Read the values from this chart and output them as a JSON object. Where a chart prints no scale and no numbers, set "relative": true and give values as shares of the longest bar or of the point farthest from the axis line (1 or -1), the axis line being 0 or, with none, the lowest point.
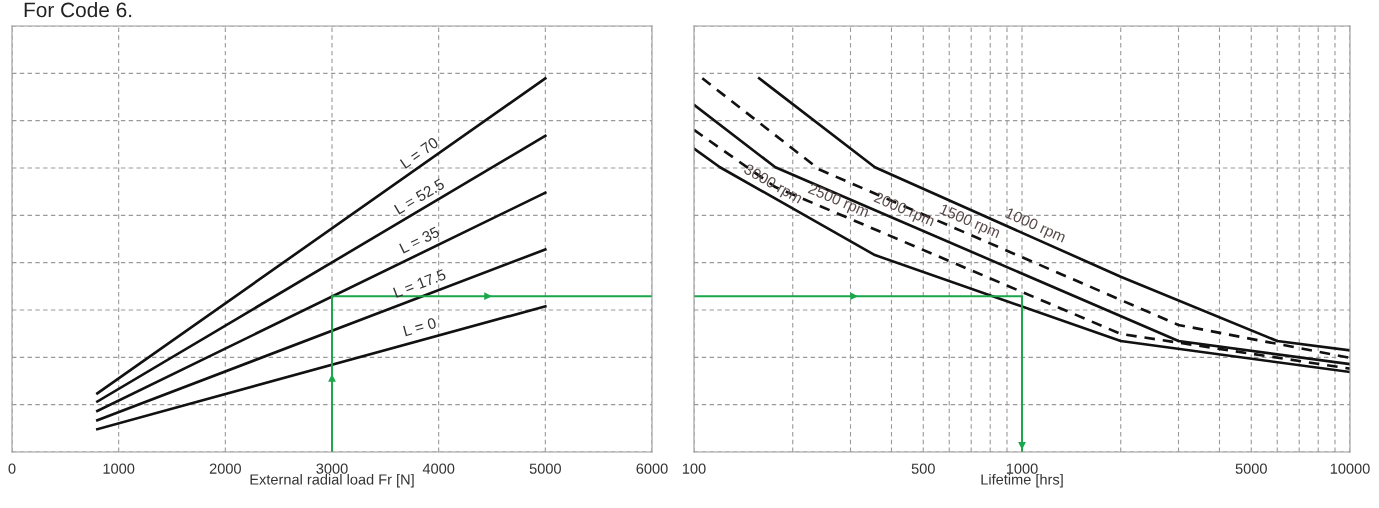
{
  "chart_data": [
    {
      "type": "line",
      "title": "For Code 6.",
      "xlabel": "External radial load Fr [N]",
      "xlim": [
        0,
        6000
      ],
      "xticks": [
        0,
        1000,
        2000,
        3000,
        4000,
        5000,
        6000
      ],
      "relative": true,
      "grid": true,
      "tick_labels": "x",
      "legend": false,
      "series": [
        {
          "name": "L = 0",
          "color": "#111111",
          "line_style": "solid",
          "x": [
            800,
            5000
          ],
          "values": [
            0.061,
            0.39
          ]
        },
        {
          "name": "L = 17.5",
          "color": "#111111",
          "line_style": "solid",
          "x": [
            800,
            5000
          ],
          "values": [
            0.085,
            0.542
          ]
        },
        {
          "name": "L = 35",
          "color": "#111111",
          "line_style": "solid",
          "x": [
            800,
            5000
          ],
          "values": [
            0.11,
            0.694
          ]
        },
        {
          "name": "L = 52.5",
          "color": "#111111",
          "line_style": "solid",
          "x": [
            800,
            5000
          ],
          "values": [
            0.135,
            0.846
          ]
        },
        {
          "name": "L = 70",
          "color": "#111111",
          "line_style": "solid",
          "x": [
            800,
            5000
          ],
          "values": [
            0.157,
            1.0
          ]
        },
        {
          "color": "#1aa64a",
          "line_style": "solid",
          "x": [
            3000,
            3000,
            6000
          ],
          "values": [
            0,
            0.417,
            0.417
          ]
        }
      ]
    },
    {
      "type": "line",
      "xlabel": "Lifetime [hrs]",
      "log": "x",
      "xlim": [
        100,
        10000
      ],
      "xticks": [
        100,
        {
          "value": 200,
          "label": null
        },
        {
          "value": 300,
          "label": null
        },
        {
          "value": 400,
          "label": null
        },
        500,
        {
          "value": 600,
          "label": null
        },
        {
          "value": 700,
          "label": null
        },
        {
          "value": 800,
          "label": null
        },
        {
          "value": 900,
          "label": null
        },
        1000,
        {
          "value": 2000,
          "label": null
        },
        {
          "value": 3000,
          "label": null
        },
        {
          "value": 4000,
          "label": null
        },
        5000,
        {
          "value": 6000,
          "label": null
        },
        {
          "value": 7000,
          "label": null
        },
        {
          "value": 8000,
          "label": null
        },
        {
          "value": 9000,
          "label": null
        },
        10000
      ],
      "relative": true,
      "grid": true,
      "tick_labels": "x",
      "legend": false,
      "series": [
        {
          "name": "3000 rpm",
          "color": "#111111",
          "line_style": "solid",
          "x": [
            100,
            120,
            356,
            2000,
            10000
          ],
          "values": [
            0.812,
            0.762,
            0.527,
            0.297,
            0.214
          ]
        },
        {
          "name": "2500 rpm",
          "color": "#111111",
          "line_style": "dashed",
          "x": [
            100,
            177,
            2000,
            10000
          ],
          "values": [
            0.862,
            0.709,
            0.316,
            0.223
          ]
        },
        {
          "name": "2000 rpm",
          "color": "#111111",
          "line_style": "solid",
          "x": [
            100,
            177,
            3000,
            10000
          ],
          "values": [
            0.929,
            0.762,
            0.297,
            0.235
          ]
        },
        {
          "name": "1500 rpm",
          "color": "#111111",
          "line_style": "dashed",
          "x": [
            106,
            241,
            3000,
            10000
          ],
          "values": [
            1.0,
            0.756,
            0.34,
            0.252
          ]
        },
        {
          "name": "1000 rpm",
          "color": "#111111",
          "line_style": "solid",
          "x": [
            158,
            356,
            2000,
            6000,
            10000
          ],
          "values": [
            1.0,
            0.762,
            0.469,
            0.297,
            0.272
          ]
        },
        {
          "color": "#1aa64a",
          "line_style": "solid",
          "x": [
            100,
            1000,
            1000
          ],
          "values": [
            0.417,
            0.417,
            0
          ]
        }
      ]
    }
  ]
}
